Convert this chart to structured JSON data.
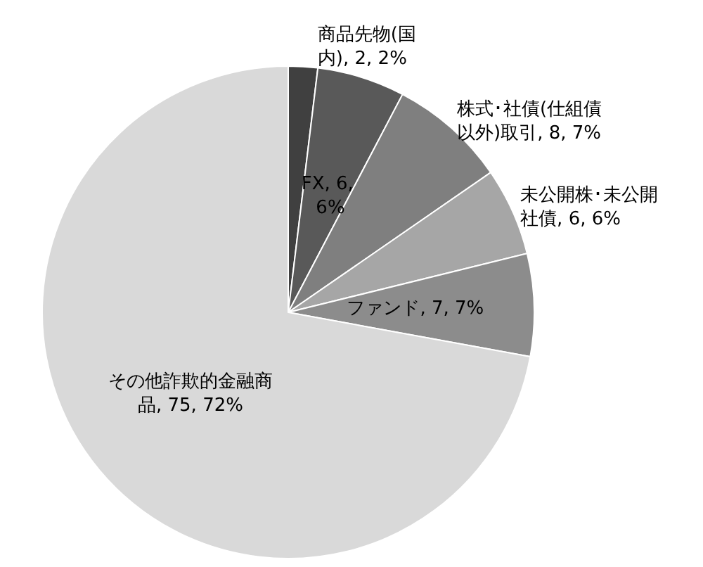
{
  "chart_data": {
    "type": "pie",
    "categories": [
      "商品先物(国内)",
      "FX",
      "株式･社債(仕組債以外)取引",
      "未公開株･未公開社債",
      "ファンド",
      "その他詐欺的金融商品"
    ],
    "values": [
      2,
      6,
      8,
      6,
      7,
      75
    ],
    "value_labels": [
      "2, 2%",
      "6, 6%",
      "8, 7%",
      "6, 6%",
      "7, 7%",
      "75, 72%"
    ],
    "colors": [
      "#404040",
      "#595959",
      "#7f7f7f",
      "#a6a6a6",
      "#8c8c8c",
      "#d9d9d9"
    ],
    "legend": false
  }
}
